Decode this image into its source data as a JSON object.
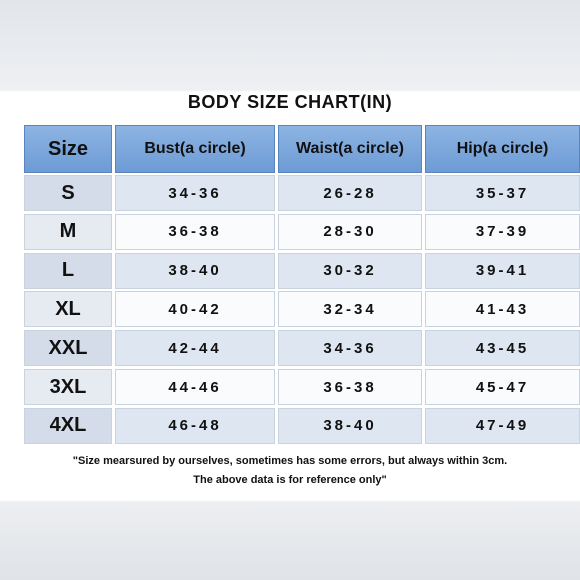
{
  "header": {
    "title": "BODY SIZE CHART(IN)"
  },
  "table": {
    "header": [
      "Size",
      "Bust(a circle)",
      "Waist(a circle)",
      "Hip(a circle)"
    ],
    "rows": [
      [
        "S",
        "34-36",
        "26-28",
        "35-37"
      ],
      [
        "M",
        "36-38",
        "28-30",
        "37-39"
      ],
      [
        "L",
        "38-40",
        "30-32",
        "39-41"
      ],
      [
        "XL",
        "40-42",
        "32-34",
        "41-43"
      ],
      [
        "XXL",
        "42-44",
        "34-36",
        "43-45"
      ],
      [
        "3XL",
        "44-46",
        "36-38",
        "45-47"
      ],
      [
        "4XL",
        "46-48",
        "38-40",
        "47-49"
      ]
    ]
  },
  "note": [
    "\"Size mearsured by ourselves, sometimes has some errors, but always within 3cm.",
    "The above data is for reference only\""
  ]
}
